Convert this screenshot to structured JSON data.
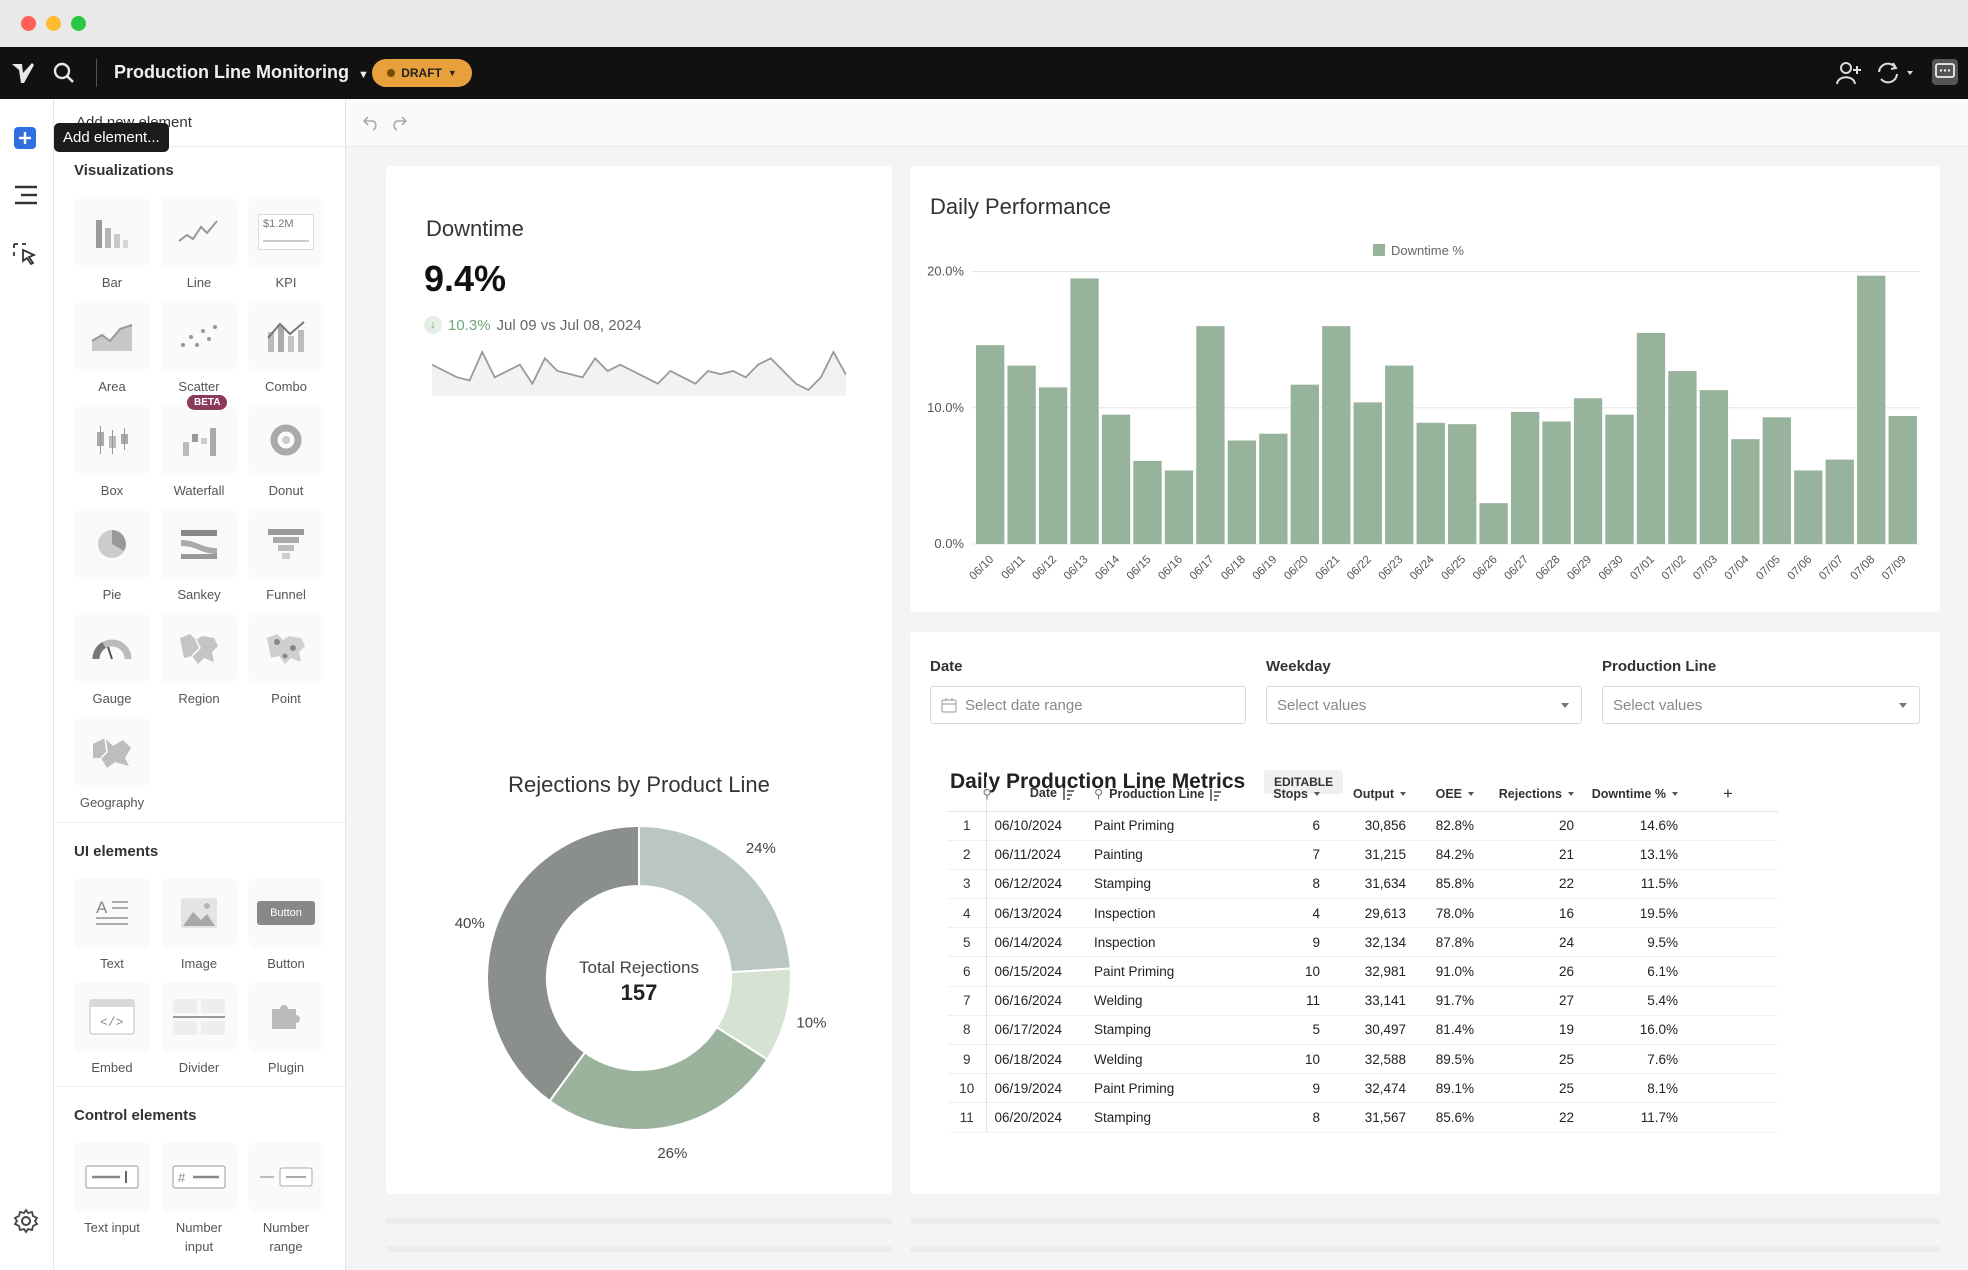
{
  "app": {
    "title": "Production Line Monitoring",
    "status": "DRAFT"
  },
  "tooltip": "Add element...",
  "panel": {
    "header": "Add new element",
    "sections": {
      "visualizations": "Visualizations",
      "ui_elements": "UI elements",
      "control_elements": "Control elements"
    },
    "viz": [
      "Bar",
      "Line",
      "KPI",
      "Area",
      "Scatter",
      "Combo",
      "Box",
      "Waterfall",
      "Donut",
      "Pie",
      "Sankey",
      "Funnel",
      "Gauge",
      "Region",
      "Point",
      "Geography"
    ],
    "kpi_sample": "$1.2M",
    "beta": "BETA",
    "ui": [
      "Text",
      "Image",
      "Button",
      "Embed",
      "Divider",
      "Plugin"
    ],
    "button_sample": "Button",
    "controls": [
      "Text input",
      "Number input",
      "Number range"
    ]
  },
  "kpi": {
    "title": "Downtime",
    "value": "9.4%",
    "change": "10.3%",
    "compare": "Jul 09 vs Jul 08, 2024",
    "sparkline": [
      11,
      10,
      9,
      8.5,
      13,
      9,
      10,
      11,
      8,
      12,
      10,
      9.5,
      9,
      12,
      10,
      11,
      10,
      9,
      8,
      10,
      9,
      8,
      10,
      9.5,
      10,
      9,
      11,
      12,
      10,
      8,
      7,
      9,
      13,
      9.4
    ]
  },
  "chart_data": [
    {
      "type": "bar",
      "title": "Daily Performance",
      "legend": [
        "Downtime %"
      ],
      "legend_position": "top-center",
      "categories": [
        "06/10",
        "06/11",
        "06/12",
        "06/13",
        "06/14",
        "06/15",
        "06/16",
        "06/17",
        "06/18",
        "06/19",
        "06/20",
        "06/21",
        "06/22",
        "06/23",
        "06/24",
        "06/25",
        "06/26",
        "06/27",
        "06/28",
        "06/29",
        "06/30",
        "07/01",
        "07/02",
        "07/03",
        "07/04",
        "07/05",
        "07/06",
        "07/07",
        "07/08",
        "07/09"
      ],
      "series": [
        {
          "name": "Downtime %",
          "values": [
            14.6,
            13.1,
            11.5,
            19.5,
            9.5,
            6.1,
            5.4,
            16.0,
            7.6,
            8.1,
            11.7,
            16.0,
            10.4,
            13.1,
            8.9,
            8.8,
            3.0,
            9.7,
            9.0,
            10.7,
            9.5,
            15.5,
            12.7,
            11.3,
            7.7,
            9.3,
            5.4,
            6.2,
            19.7,
            9.4
          ]
        }
      ],
      "y_ticks": [
        "0.0%",
        "10.0%",
        "20.0%"
      ],
      "ylim": [
        0,
        21
      ],
      "grid": true,
      "color": "#98b39b"
    },
    {
      "type": "pie",
      "title": "Rejections by Product Line",
      "center_label": "Total Rejections",
      "center_value": "157",
      "slices": [
        {
          "value": 24,
          "label": "24%",
          "color": "#b9c7c0"
        },
        {
          "value": 10,
          "label": "10%",
          "color": "#d6e3d3"
        },
        {
          "value": 26,
          "label": "26%",
          "color": "#9bb39c"
        },
        {
          "value": 40,
          "label": "40%",
          "color": "#8a8f8c"
        }
      ]
    }
  ],
  "filters": [
    {
      "label": "Date",
      "placeholder": "Select date range"
    },
    {
      "label": "Weekday",
      "placeholder": "Select values"
    },
    {
      "label": "Production Line",
      "placeholder": "Select values"
    }
  ],
  "table": {
    "title": "Daily Production Line Metrics",
    "badge": "EDITABLE",
    "columns": [
      "Date",
      "Production Line",
      "Stops",
      "Output",
      "OEE",
      "Rejections",
      "Downtime %"
    ],
    "rows": [
      [
        "1",
        "06/10/2024",
        "Paint Priming",
        "6",
        "30,856",
        "82.8%",
        "20",
        "14.6%"
      ],
      [
        "2",
        "06/11/2024",
        "Painting",
        "7",
        "31,215",
        "84.2%",
        "21",
        "13.1%"
      ],
      [
        "3",
        "06/12/2024",
        "Stamping",
        "8",
        "31,634",
        "85.8%",
        "22",
        "11.5%"
      ],
      [
        "4",
        "06/13/2024",
        "Inspection",
        "4",
        "29,613",
        "78.0%",
        "16",
        "19.5%"
      ],
      [
        "5",
        "06/14/2024",
        "Inspection",
        "9",
        "32,134",
        "87.8%",
        "24",
        "9.5%"
      ],
      [
        "6",
        "06/15/2024",
        "Paint Priming",
        "10",
        "32,981",
        "91.0%",
        "26",
        "6.1%"
      ],
      [
        "7",
        "06/16/2024",
        "Welding",
        "11",
        "33,141",
        "91.7%",
        "27",
        "5.4%"
      ],
      [
        "8",
        "06/17/2024",
        "Stamping",
        "5",
        "30,497",
        "81.4%",
        "19",
        "16.0%"
      ],
      [
        "9",
        "06/18/2024",
        "Welding",
        "10",
        "32,588",
        "89.5%",
        "25",
        "7.6%"
      ],
      [
        "10",
        "06/19/2024",
        "Paint Priming",
        "9",
        "32,474",
        "89.1%",
        "25",
        "8.1%"
      ],
      [
        "11",
        "06/20/2024",
        "Stamping",
        "8",
        "31,567",
        "85.6%",
        "22",
        "11.7%"
      ]
    ]
  }
}
